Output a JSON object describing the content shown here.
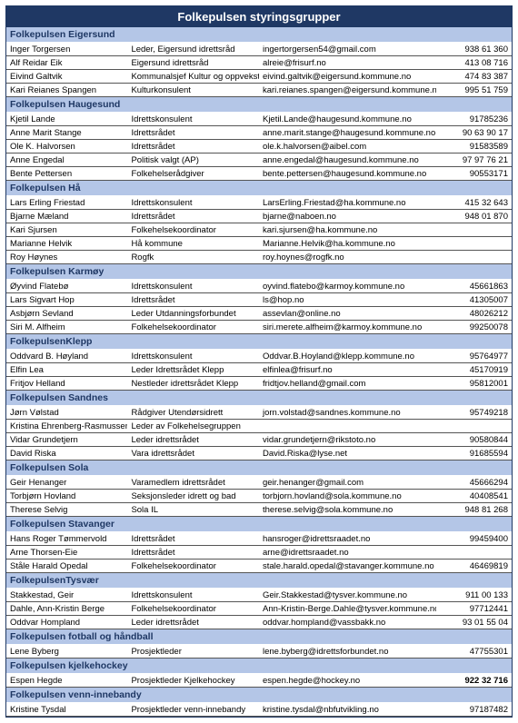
{
  "title": "Folkepulsen styringsgrupper",
  "colors": {
    "header_bg": "#1f3864",
    "header_text": "#ffffff",
    "section_bg": "#b4c6e7",
    "section_text": "#1f3864",
    "row_border": "#555555",
    "text": "#000000"
  },
  "columns": [
    "name",
    "role",
    "email",
    "phone"
  ],
  "sections": [
    {
      "header": "Folkepulsen Eigersund",
      "rows": [
        {
          "name": "Inger Torgersen",
          "role": "Leder, Eigersund idrettsråd",
          "email": "ingertorgersen54@gmail.com",
          "phone": "938 61 360"
        },
        {
          "name": "Alf Reidar Eik",
          "role": "Eigersund idrettsråd",
          "email": "alreie@frisurf.no",
          "phone": "413 08 716"
        },
        {
          "name": "Eivind Galtvik",
          "role": "Kommunalsjef Kultur og oppvekst",
          "email": "eivind.galtvik@eigersund.kommune.no",
          "phone": "474 83 387"
        },
        {
          "name": "Kari Reianes Spangen",
          "role": "Kulturkonsulent",
          "email": "kari.reianes.spangen@eigersund.kommune.no",
          "phone": "995 51 759"
        }
      ]
    },
    {
      "header": "Folkepulsen Haugesund",
      "rows": [
        {
          "name": "Kjetil Lande",
          "role": "Idrettskonsulent",
          "email": "Kjetil.Lande@haugesund.kommune.no",
          "phone": "91785236"
        },
        {
          "name": "Anne Marit Stange",
          "role": "Idrettsrådet",
          "email": "anne.marit.stange@haugesund.kommune.no",
          "phone": "90 63 90 17"
        },
        {
          "name": "Ole K. Halvorsen",
          "role": "Idrettsrådet",
          "email": "ole.k.halvorsen@aibel.com",
          "phone": "91583589"
        },
        {
          "name": "Anne Engedal",
          "role": "Politisk valgt (AP)",
          "email": "anne.engedal@haugesund.kommune.no",
          "phone": "97 97 76 21"
        },
        {
          "name": "Bente Pettersen",
          "role": "Folkehelserådgiver",
          "email": "bente.pettersen@haugesund.kommune.no",
          "phone": "90553171"
        }
      ]
    },
    {
      "header": "Folkepulsen Hå",
      "rows": [
        {
          "name": "Lars Erling Friestad",
          "role": "Idrettskonsulent",
          "email": "LarsErling.Friestad@ha.kommune.no",
          "phone": "415 32 643"
        },
        {
          "name": "Bjarne Mæland",
          "role": "Idrettsrådet",
          "email": "bjarne@naboen.no",
          "phone": "948 01 870"
        },
        {
          "name": "Kari Sjursen",
          "role": "Folkehelsekoordinator",
          "email": "kari.sjursen@ha.kommune.no",
          "phone": ""
        },
        {
          "name": "Marianne Helvik",
          "role": "Hå kommune",
          "email": "Marianne.Helvik@ha.kommune.no",
          "phone": ""
        },
        {
          "name": "Roy Høynes",
          "role": "Rogfk",
          "email": "roy.hoynes@rogfk.no",
          "phone": ""
        }
      ]
    },
    {
      "header": "Folkepulsen Karmøy",
      "rows": [
        {
          "name": "Øyvind Flatebø",
          "role": "Idrettskonsulent",
          "email": "oyvind.flatebo@karmoy.kommune.no",
          "phone": "45661863"
        },
        {
          "name": "Lars Sigvart Hop",
          "role": "Idrettsrådet",
          "email": "ls@hop.no",
          "phone": "41305007"
        },
        {
          "name": "Asbjørn Sevland",
          "role": "Leder Utdanningsforbundet",
          "email": "assevlan@online.no",
          "phone": "48026212"
        },
        {
          "name": "Siri M. Alfheim",
          "role": "Folkehelsekoordinator",
          "email": "siri.merete.alfheim@karmoy.kommune.no",
          "phone": "99250078"
        }
      ]
    },
    {
      "header": "FolkepulsenKlepp",
      "rows": [
        {
          "name": "Oddvard B. Høyland",
          "role": "Idrettskonsulent",
          "email": "Oddvar.B.Hoyland@klepp.kommune.no",
          "phone": "95764977"
        },
        {
          "name": "Elfin Lea",
          "role": "Leder Idrettsrådet Klepp",
          "email": "elfinlea@frisurf.no",
          "phone": "45170919"
        },
        {
          "name": "Fritjov Helland",
          "role": "Nestleder idrettsrådet Klepp",
          "email": "fridtjov.helland@gmail.com",
          "phone": "95812001"
        }
      ]
    },
    {
      "header": "Folkepulsen Sandnes",
      "rows": [
        {
          "name": "Jørn Vølstad",
          "role": "Rådgiver Utendørsidrett",
          "email": "jorn.volstad@sandnes.kommune.no",
          "phone": "95749218"
        },
        {
          "name": "Kristina Ehrenberg-Rasmussen",
          "role": "Leder av Folkehelsegruppen",
          "email": "",
          "phone": ""
        },
        {
          "name": "Vidar Grundetjern",
          "role": "Leder idrettsrådet",
          "email": "vidar.grundetjern@rikstoto.no",
          "phone": "90580844"
        },
        {
          "name": "David Riska",
          "role": "Vara idrettsrådet",
          "email": "David.Riska@lyse.net",
          "phone": "91685594"
        }
      ]
    },
    {
      "header": "Folkepulsen Sola",
      "rows": [
        {
          "name": "Geir Henanger",
          "role": "Varamedlem idrettsrådet",
          "email": "geir.henanger@gmail.com",
          "phone": "45666294"
        },
        {
          "name": "Torbjørn Hovland",
          "role": "Seksjonsleder idrett og bad",
          "email": "torbjorn.hovland@sola.kommune.no",
          "phone": "40408541"
        },
        {
          "name": "Therese Selvig",
          "role": "Sola IL",
          "email": "therese.selvig@sola.kommune.no",
          "phone": "948 81 268"
        }
      ]
    },
    {
      "header": "Folkepulsen Stavanger",
      "rows": [
        {
          "name": "Hans Roger Tømmervold",
          "role": "Idrettsrådet",
          "email": "hansroger@idrettsraadet.no",
          "phone": "99459400"
        },
        {
          "name": "Arne Thorsen-Eie",
          "role": "Idrettsrådet",
          "email": "arne@idrettsraadet.no",
          "phone": ""
        },
        {
          "name": "Ståle Harald Opedal",
          "role": "Folkehelsekoordinator",
          "email": "stale.harald.opedal@stavanger.kommune.no",
          "phone": "46469819"
        }
      ]
    },
    {
      "header": "FolkepulsenTysvær",
      "rows": [
        {
          "name": "Stakkestad, Geir",
          "role": "Idrettskonsulent",
          "email": "Geir.Stakkestad@tysver.kommune.no",
          "phone": "911 00 133"
        },
        {
          "name": "Dahle, Ann-Kristin Berge",
          "role": "Folkehelsekoordinator",
          "email": "Ann-Kristin-Berge.Dahle@tysver.kommune.no",
          "phone": "97712441"
        },
        {
          "name": "Oddvar Hompland",
          "role": "Leder idrettsrådet",
          "email": "oddvar.hompland@vassbakk.no",
          "phone": "93 01 55 04"
        }
      ]
    },
    {
      "header": "Folkepulsen fotball og håndball",
      "rows": [
        {
          "name": "Lene Byberg",
          "role": "Prosjektleder",
          "email": "lene.byberg@idrettsforbundet.no",
          "phone": "47755301"
        }
      ]
    },
    {
      "header": "Folkepulsen kjelkehockey",
      "rows": [
        {
          "name": "Espen Hegde",
          "role": "Prosjektleder Kjelkehockey",
          "email": "espen.hegde@hockey.no",
          "phone": "922 32 716",
          "bold_phone": true
        }
      ]
    },
    {
      "header": "Folkepulsen venn-innebandy",
      "rows": [
        {
          "name": "Kristine Tysdal",
          "role": "Prosjektleder venn-innebandy",
          "email": "kristine.tysdal@nbfutvikling.no",
          "phone": "97187482"
        }
      ]
    }
  ]
}
